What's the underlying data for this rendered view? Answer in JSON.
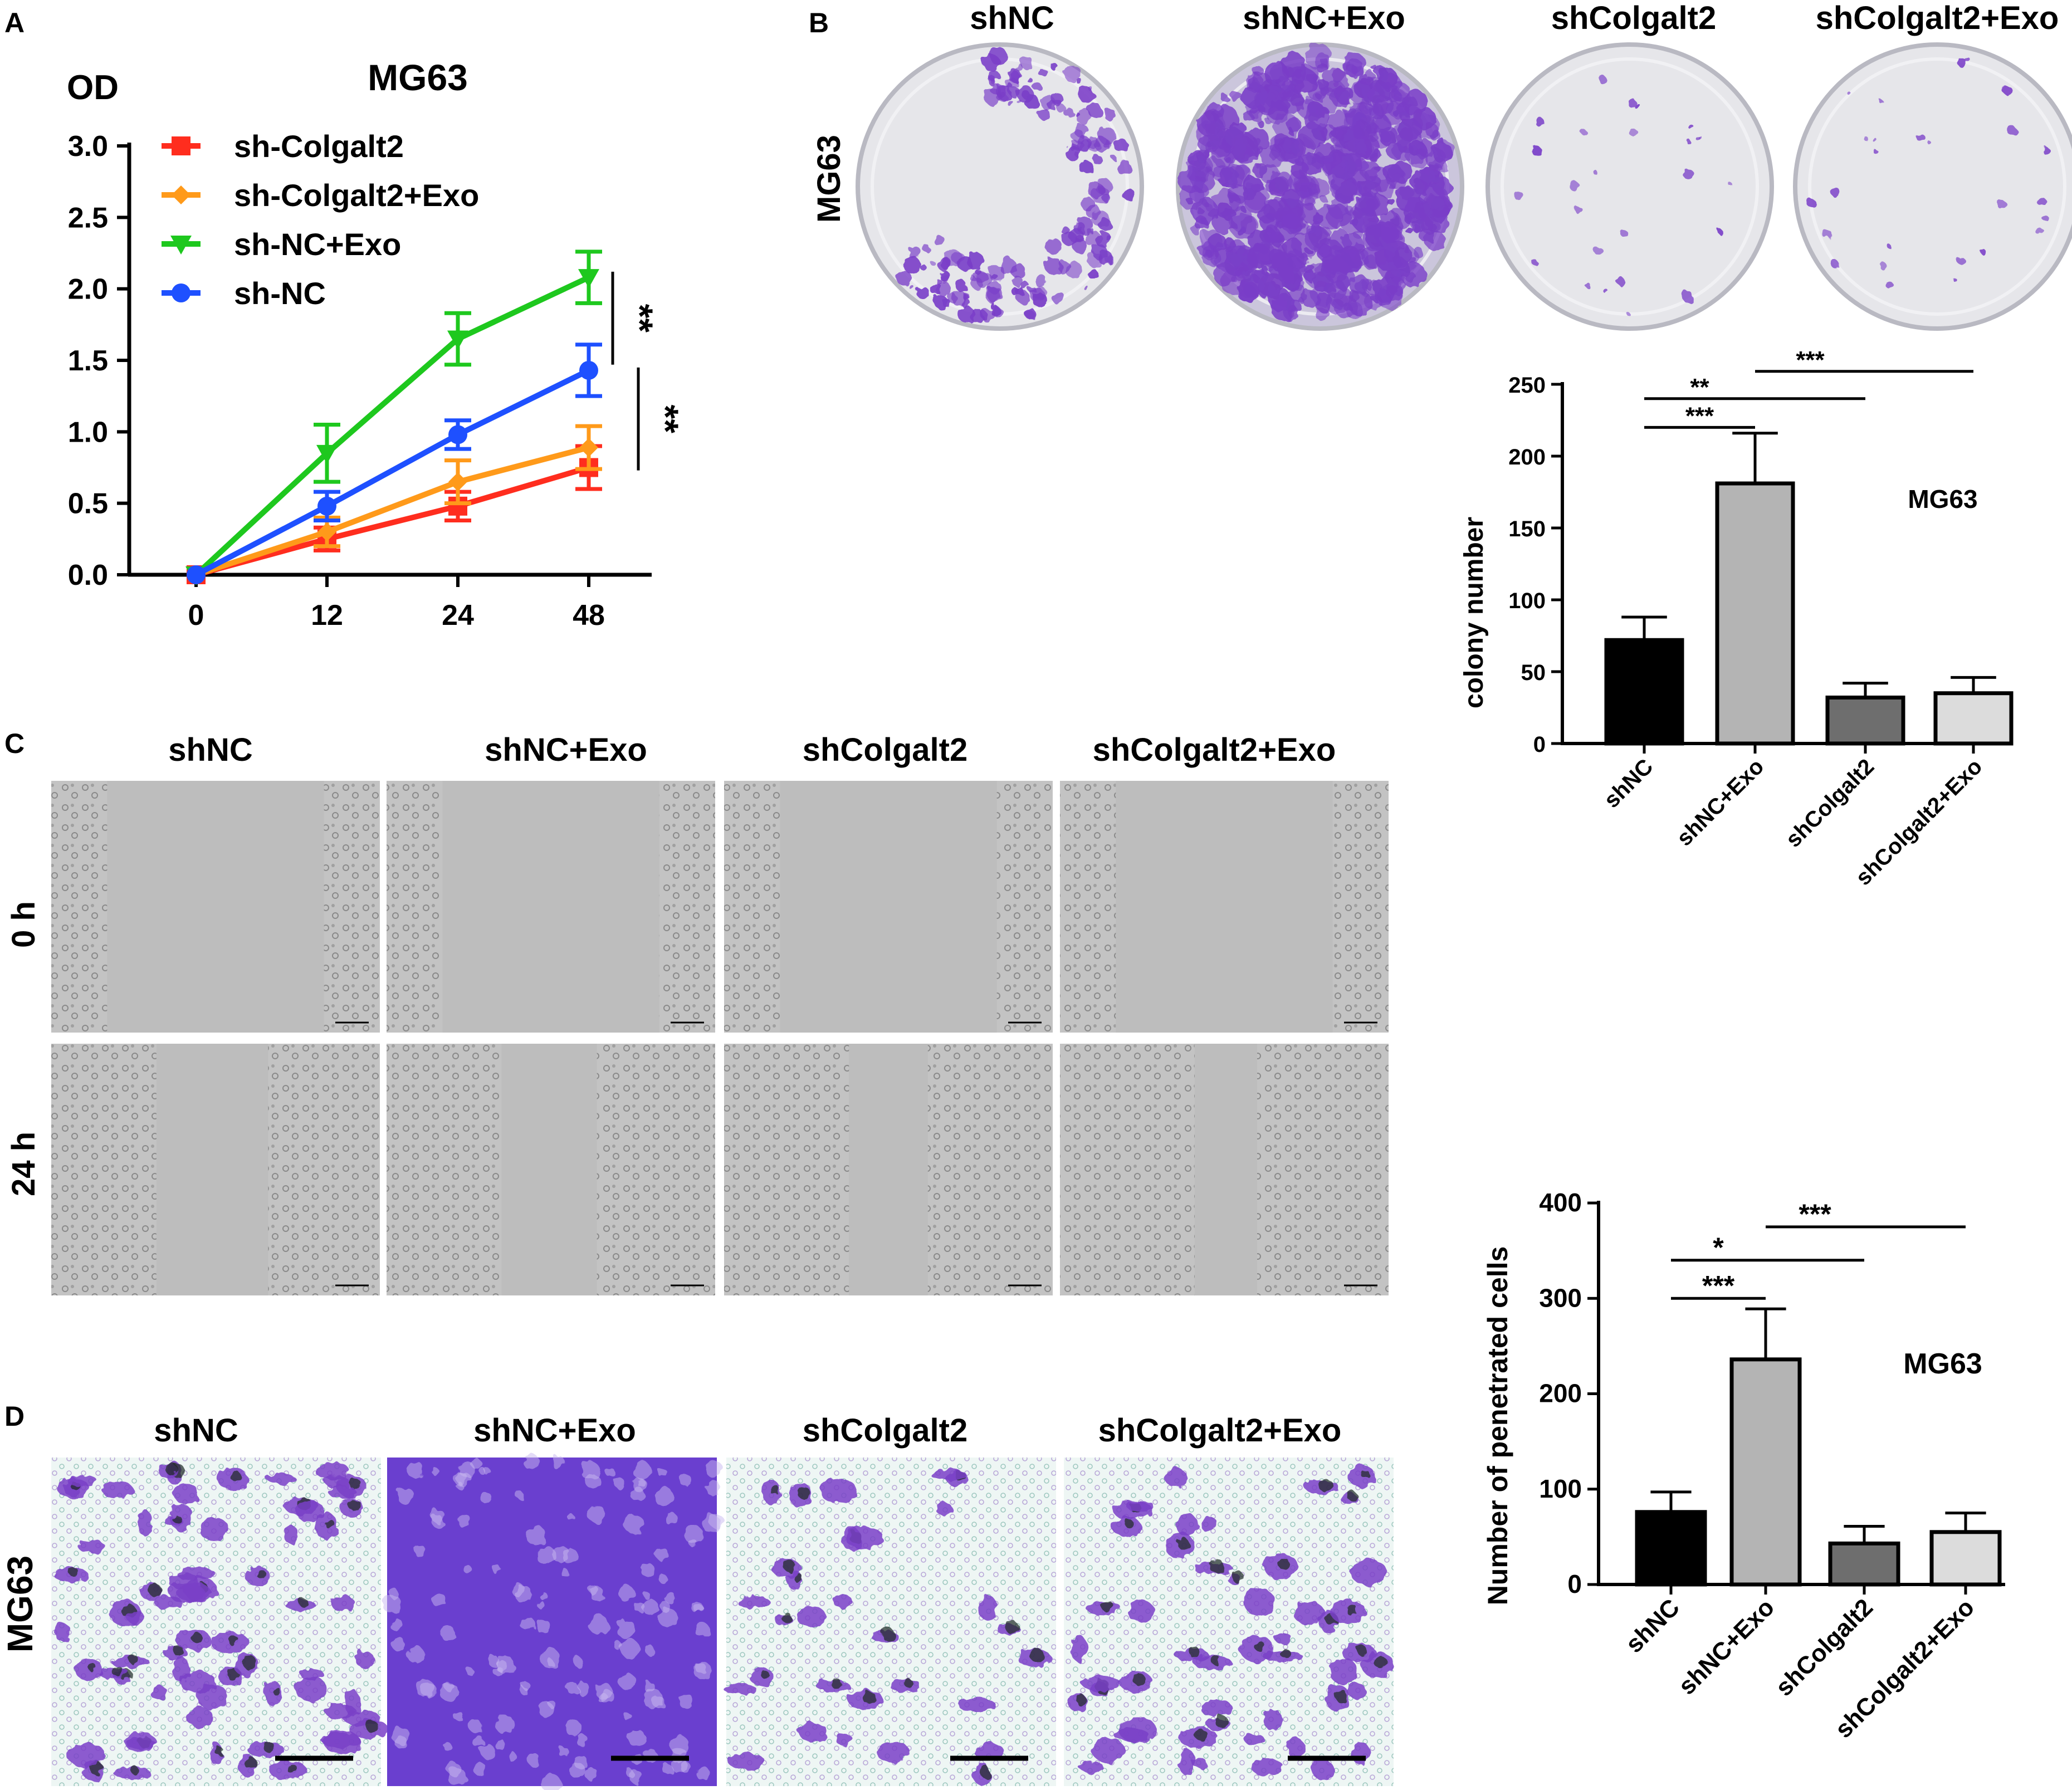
{
  "panels": {
    "a": {
      "letter": "A"
    },
    "b": {
      "letter": "B",
      "column_headers": [
        "shNC",
        "shNC+Exo",
        "shColgalt2",
        "shColgalt2+Exo"
      ],
      "row_label": "MG63"
    },
    "c": {
      "letter": "C",
      "column_headers": [
        "shNC",
        "shNC+Exo",
        "shColgalt2",
        "shColgalt2+Exo"
      ],
      "row_labels": [
        "0 h",
        "24 h"
      ]
    },
    "d": {
      "letter": "D",
      "column_headers": [
        "shNC",
        "shNC+Exo",
        "shColgalt2",
        "shColgalt2+Exo"
      ],
      "row_label": "MG63"
    }
  },
  "colors": {
    "sh_colgalt2": "#ff2d1e",
    "sh_colgalt2_exo": "#ff9a1a",
    "sh_nc_exo": "#1ec81e",
    "sh_nc": "#1e50ff",
    "bar_black": "#000000",
    "bar_gray_light": "#b4b4b4",
    "bar_gray_dark": "#6e6e6e",
    "bar_gray_pale": "#dcdcdc",
    "crystal_violet": "#7a3fc8",
    "plate_bg": "#e6e6ea",
    "scratch_bg": "#bdbdbd"
  },
  "chart_data": [
    {
      "id": "proliferation",
      "type": "line",
      "title": "MG63",
      "ylabel": "OD",
      "xlabel": "",
      "x": [
        "0",
        "12",
        "24",
        "48"
      ],
      "ylim": [
        0,
        3.0
      ],
      "yticks": [
        "0.0",
        "0.5",
        "1.0",
        "1.5",
        "2.0",
        "2.5",
        "3.0"
      ],
      "legend_position": "top-left",
      "series": [
        {
          "name": "sh-Colgalt2",
          "marker": "square",
          "color_key": "sh_colgalt2",
          "values": [
            0.0,
            0.25,
            0.48,
            0.75
          ],
          "errors": [
            0.02,
            0.08,
            0.1,
            0.15
          ]
        },
        {
          "name": "sh-Colgalt2+Exo",
          "marker": "diamond",
          "color_key": "sh_colgalt2_exo",
          "values": [
            0.0,
            0.3,
            0.65,
            0.89
          ],
          "errors": [
            0.02,
            0.1,
            0.15,
            0.15
          ]
        },
        {
          "name": "sh-NC+Exo",
          "marker": "triangle-down",
          "color_key": "sh_nc_exo",
          "values": [
            0.0,
            0.85,
            1.65,
            2.08
          ],
          "errors": [
            0.02,
            0.2,
            0.18,
            0.18
          ]
        },
        {
          "name": "sh-NC",
          "marker": "circle",
          "color_key": "sh_nc",
          "values": [
            0.0,
            0.48,
            0.98,
            1.43
          ],
          "errors": [
            0.02,
            0.1,
            0.1,
            0.18
          ]
        }
      ],
      "significance": [
        {
          "label": "**",
          "from": 2.12,
          "to": 1.47
        },
        {
          "label": "**",
          "from": 1.45,
          "to": 0.73
        }
      ]
    },
    {
      "id": "colony",
      "type": "bar",
      "title": "MG63",
      "ylabel": "colony number",
      "xlabel": "",
      "categories": [
        "shNC",
        "shNC+Exo",
        "shColgalt2",
        "shColgalt2+Exo"
      ],
      "values": [
        72,
        181,
        32,
        35
      ],
      "errors": [
        16,
        35,
        10,
        11
      ],
      "bar_color_keys": [
        "bar_black",
        "bar_gray_light",
        "bar_gray_dark",
        "bar_gray_pale"
      ],
      "ylim": [
        0,
        250
      ],
      "yticks": [
        "0",
        "50",
        "100",
        "150",
        "200",
        "250"
      ],
      "significance": [
        {
          "label": "***",
          "from": 0,
          "to": 1,
          "y": 220
        },
        {
          "label": "**",
          "from": 0,
          "to": 2,
          "y": 240
        },
        {
          "label": "***",
          "from": 1,
          "to": 3,
          "y": 259
        }
      ]
    },
    {
      "id": "invasion",
      "type": "bar",
      "title": "MG63",
      "ylabel": "Number of penetrated cells",
      "xlabel": "",
      "categories": [
        "shNC",
        "shNC+Exo",
        "shColgalt2",
        "shColgalt2+Exo"
      ],
      "values": [
        76,
        236,
        43,
        55
      ],
      "errors": [
        21,
        53,
        18,
        20
      ],
      "bar_color_keys": [
        "bar_black",
        "bar_gray_light",
        "bar_gray_dark",
        "bar_gray_pale"
      ],
      "ylim": [
        0,
        400
      ],
      "yticks": [
        "0",
        "100",
        "200",
        "300",
        "400"
      ],
      "significance": [
        {
          "label": "***",
          "from": 0,
          "to": 1,
          "y": 300
        },
        {
          "label": "*",
          "from": 0,
          "to": 2,
          "y": 340
        },
        {
          "label": "***",
          "from": 1,
          "to": 3,
          "y": 375
        }
      ]
    }
  ]
}
